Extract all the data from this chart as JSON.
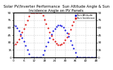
{
  "title": "Solar PV/Inverter Performance  Sun Altitude Angle & Sun Incidence Angle on PV Panels",
  "x_values": [
    0,
    1,
    2,
    3,
    4,
    5,
    6,
    7,
    8,
    9,
    10,
    11,
    12,
    13,
    14,
    15,
    16,
    17,
    18,
    19,
    20,
    21,
    22,
    23,
    24,
    25,
    26,
    27,
    28,
    29,
    30,
    31,
    32,
    33,
    34,
    35,
    36,
    37,
    38,
    39,
    40,
    41,
    42,
    43,
    44,
    45,
    46,
    47,
    48
  ],
  "sun_altitude": [
    65,
    63,
    59,
    54,
    47,
    40,
    32,
    24,
    15,
    7,
    0,
    0,
    0,
    0,
    0,
    0,
    0,
    5,
    14,
    23,
    31,
    39,
    46,
    53,
    58,
    62,
    64,
    65,
    63,
    60,
    55,
    49,
    42,
    34,
    26,
    18,
    10,
    2,
    0,
    0,
    0,
    0,
    0,
    0,
    0,
    0,
    0,
    0,
    0
  ],
  "sun_incidence": [
    25,
    27,
    31,
    36,
    43,
    50,
    58,
    66,
    75,
    83,
    90,
    90,
    90,
    90,
    90,
    90,
    90,
    85,
    76,
    67,
    59,
    51,
    44,
    37,
    32,
    28,
    26,
    25,
    27,
    30,
    35,
    41,
    48,
    56,
    64,
    72,
    80,
    88,
    90,
    90,
    90,
    90,
    90,
    90,
    90,
    90,
    90,
    90,
    90
  ],
  "altitude_color": "#0000dd",
  "incidence_color": "#dd0000",
  "ylim": [
    0,
    90
  ],
  "yticks": [
    0,
    15,
    30,
    45,
    60,
    75,
    90
  ],
  "xtick_step": 6,
  "background_color": "#ffffff",
  "grid_color": "#999999",
  "title_fontsize": 3.8,
  "tick_fontsize": 3.0,
  "marker_size": 1.2,
  "legend_labels": [
    "Sun Altitude",
    "Sun Incidence"
  ],
  "legend_colors": [
    "#0000dd",
    "#dd0000"
  ]
}
